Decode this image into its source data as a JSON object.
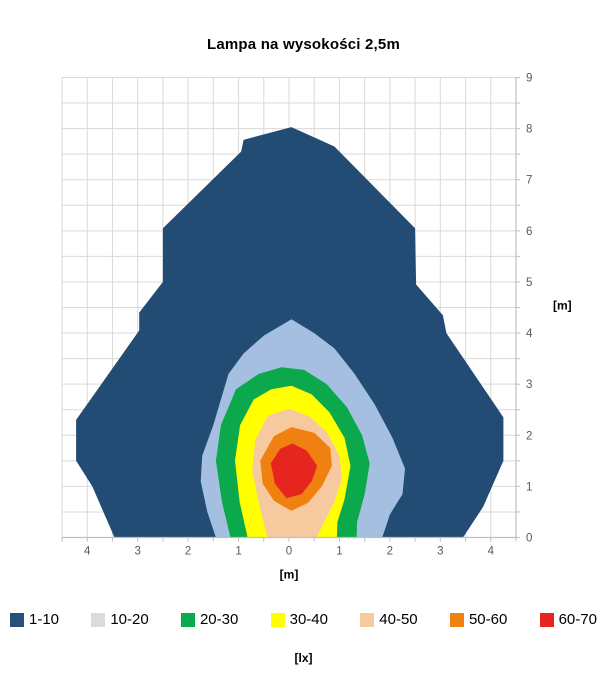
{
  "title": "Lampa na wysokości 2,5m",
  "chart_data": {
    "type": "contour",
    "title": "Lampa na wysokości 2,5m",
    "x_axis": {
      "label": "[m]",
      "min": -4.5,
      "max": 4.5,
      "grid_step": 0.5,
      "tick_step": 0.5,
      "tick_values": [
        -4,
        -3,
        -2,
        -1,
        0,
        1,
        2,
        3,
        4
      ],
      "tick_labels": [
        "4",
        "3",
        "2",
        "1",
        "0",
        "1",
        "2",
        "3",
        "4"
      ]
    },
    "y_axis": {
      "label": "[m]",
      "side": "right",
      "min": 0,
      "max": 9,
      "grid_step": 0.5,
      "tick_step": 0.5,
      "tick_values": [
        0,
        1,
        2,
        3,
        4,
        5,
        6,
        7,
        8,
        9
      ],
      "tick_labels": [
        "0",
        "1",
        "2",
        "3",
        "4",
        "5",
        "6",
        "7",
        "8",
        "9"
      ]
    },
    "unit": "[lx]",
    "legend": [
      {
        "label": "1-10",
        "color": "#27507B"
      },
      {
        "label": "10-20",
        "color": "#DBDBDB"
      },
      {
        "label": "20-30",
        "color": "#0CA94C"
      },
      {
        "label": "30-40",
        "color": "#FFFF00"
      },
      {
        "label": "40-50",
        "color": "#F7C99F"
      },
      {
        "label": "50-60",
        "color": "#F0800F"
      },
      {
        "label": "60-70",
        "color": "#E6251F"
      }
    ],
    "bands": [
      {
        "range": "1-10",
        "fill": "#234C75",
        "polygon": [
          [
            -3.46,
            0
          ],
          [
            -3.9,
            1.0
          ],
          [
            -4.22,
            1.5
          ],
          [
            -4.22,
            2.3
          ],
          [
            -2.97,
            4.05
          ],
          [
            -2.97,
            4.4
          ],
          [
            -2.5,
            5.0
          ],
          [
            -2.5,
            6.05
          ],
          [
            -0.95,
            7.55
          ],
          [
            -0.9,
            7.78
          ],
          [
            -0.45,
            7.9
          ],
          [
            0.05,
            8.03
          ],
          [
            0.45,
            7.85
          ],
          [
            0.9,
            7.65
          ],
          [
            1.6,
            6.95
          ],
          [
            2.5,
            6.05
          ],
          [
            2.52,
            4.95
          ],
          [
            3.05,
            4.35
          ],
          [
            3.12,
            4.0
          ],
          [
            4.25,
            2.35
          ],
          [
            4.25,
            1.5
          ],
          [
            3.85,
            0.6
          ],
          [
            3.45,
            0
          ]
        ]
      },
      {
        "range": "10-20",
        "fill": "#A4BFDF",
        "polygon": [
          [
            -1.45,
            0
          ],
          [
            -1.62,
            0.5
          ],
          [
            -1.75,
            1.1
          ],
          [
            -1.72,
            1.6
          ],
          [
            -1.5,
            2.2
          ],
          [
            -1.2,
            3.2
          ],
          [
            -0.9,
            3.6
          ],
          [
            -0.5,
            3.95
          ],
          [
            0.05,
            4.27
          ],
          [
            0.5,
            4.0
          ],
          [
            0.9,
            3.7
          ],
          [
            1.3,
            3.2
          ],
          [
            1.7,
            2.6
          ],
          [
            2.05,
            1.95
          ],
          [
            2.3,
            1.35
          ],
          [
            2.25,
            0.85
          ],
          [
            2.0,
            0.45
          ],
          [
            1.85,
            0
          ]
        ]
      },
      {
        "range": "20-30",
        "fill": "#0CA94C",
        "polygon": [
          [
            -1.16,
            0
          ],
          [
            -1.33,
            0.7
          ],
          [
            -1.45,
            1.5
          ],
          [
            -1.35,
            2.2
          ],
          [
            -1.05,
            2.9
          ],
          [
            -0.6,
            3.2
          ],
          [
            -0.15,
            3.33
          ],
          [
            0.3,
            3.28
          ],
          [
            0.75,
            3.0
          ],
          [
            1.15,
            2.55
          ],
          [
            1.45,
            2.0
          ],
          [
            1.6,
            1.45
          ],
          [
            1.5,
            0.85
          ],
          [
            1.35,
            0.3
          ],
          [
            1.34,
            0
          ]
        ]
      },
      {
        "range": "30-40",
        "fill": "#FFFF00",
        "polygon": [
          [
            -0.82,
            0
          ],
          [
            -0.98,
            0.7
          ],
          [
            -1.07,
            1.5
          ],
          [
            -0.97,
            2.2
          ],
          [
            -0.7,
            2.7
          ],
          [
            -0.35,
            2.9
          ],
          [
            0.05,
            2.97
          ],
          [
            0.45,
            2.8
          ],
          [
            0.8,
            2.45
          ],
          [
            1.1,
            1.95
          ],
          [
            1.22,
            1.4
          ],
          [
            1.1,
            0.75
          ],
          [
            0.96,
            0.3
          ],
          [
            0.95,
            0
          ]
        ]
      },
      {
        "range": "40-50",
        "fill": "#F7C99F",
        "polygon": [
          [
            -0.43,
            0
          ],
          [
            -0.58,
            0.6
          ],
          [
            -0.73,
            1.3
          ],
          [
            -0.67,
            1.9
          ],
          [
            -0.42,
            2.38
          ],
          [
            0.0,
            2.52
          ],
          [
            0.42,
            2.36
          ],
          [
            0.76,
            2.05
          ],
          [
            1.0,
            1.6
          ],
          [
            1.05,
            1.15
          ],
          [
            0.9,
            0.7
          ],
          [
            0.7,
            0.3
          ],
          [
            0.55,
            0
          ]
        ]
      },
      {
        "range": "50-60",
        "fill": "#F0800F",
        "polygon": [
          [
            0.05,
            2.16
          ],
          [
            -0.3,
            1.98
          ],
          [
            -0.57,
            1.5
          ],
          [
            -0.52,
            1.05
          ],
          [
            -0.3,
            0.72
          ],
          [
            0.05,
            0.52
          ],
          [
            0.38,
            0.68
          ],
          [
            0.65,
            1.0
          ],
          [
            0.85,
            1.4
          ],
          [
            0.82,
            1.75
          ],
          [
            0.5,
            2.05
          ]
        ]
      },
      {
        "range": "60-70",
        "fill": "#E6251F",
        "polygon": [
          [
            0.07,
            1.84
          ],
          [
            -0.17,
            1.74
          ],
          [
            -0.36,
            1.45
          ],
          [
            -0.28,
            1.05
          ],
          [
            -0.05,
            0.77
          ],
          [
            0.25,
            0.85
          ],
          [
            0.45,
            1.1
          ],
          [
            0.56,
            1.4
          ],
          [
            0.35,
            1.7
          ]
        ]
      }
    ],
    "style": {
      "grid_color": "#D9D9D9",
      "axis_color": "#BFBFBF",
      "tick_label_color": "#595959",
      "background": "#FFFFFF"
    }
  }
}
